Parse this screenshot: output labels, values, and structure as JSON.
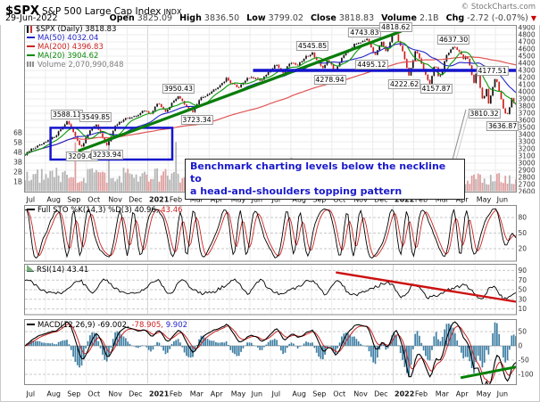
{
  "header": {
    "symbol": "$SPX",
    "name": "S&P 500 Large Cap Index",
    "exchange": "INDX",
    "credit": "© StockCharts.com",
    "date": "29-Jun-2022",
    "quote": {
      "open_label": "Open",
      "open": "3825.09",
      "high_label": "High",
      "high": "3836.50",
      "low_label": "Low",
      "low": "3799.02",
      "close_label": "Close",
      "close": "3818.83",
      "volume_label": "Volume",
      "volume": "2.1B",
      "chg_label": "Chg",
      "chg": "-2.72 (-0.07%)",
      "chg_arrow": "▼"
    }
  },
  "months": [
    "Jul",
    "Aug",
    "Sep",
    "Oct",
    "Nov",
    "Dec",
    "2021",
    "Feb",
    "Mar",
    "Apr",
    "May",
    "Jun",
    "Jul",
    "Aug",
    "Sep",
    "Oct",
    "Nov",
    "Dec",
    "2022",
    "Feb",
    "Mar",
    "Apr",
    "May",
    "Jun"
  ],
  "colors": {
    "up": "#111111",
    "down": "#cc2020",
    "ma20": "#0a9a0a",
    "ma50": "#2424c9",
    "ma200": "#e05555",
    "volume_up": "#b5b5b5",
    "volume_down": "#dfa0a0",
    "neckline": "#1515cc",
    "trendline": "#0a7d0a",
    "box": "#1515cc",
    "annotation_text": "#1a1acc",
    "sto_k": "#000000",
    "sto_d": "#cc2222",
    "rsi_line": "#000000",
    "rsi_trend": "#cc1111",
    "hist": "#3e7ea3",
    "macd_line": "#000000",
    "signal": "#cc2222",
    "macd_trend": "#008000"
  },
  "chart_data": [
    {
      "type": "candlestick",
      "title": "$SPX (Daily) 3818.83",
      "legend": {
        "symbol": "$SPX (Daily) 3818.83",
        "ma50": "MA(50) 4032.04",
        "ma200": "MA(200) 4396.83",
        "ma20": "MA(20) 3904.62",
        "volume": "Volume 2,070,990,848"
      },
      "y_ticks_right": [
        4900,
        4800,
        4700,
        4600,
        4500,
        4400,
        4300,
        4200,
        4100,
        4000,
        3900,
        3800,
        3700,
        3600,
        3500,
        3400,
        3300,
        3200,
        3100,
        3000,
        2900,
        2800,
        2700,
        2600
      ],
      "volume_ticks": [
        "1B",
        "2B",
        "3B",
        "4B",
        "5B",
        "6B"
      ],
      "price_anchors": [
        [
          0,
          3115
        ],
        [
          0.35,
          3205
        ],
        [
          0.9,
          3271
        ],
        [
          1.5,
          3387
        ],
        [
          2.05,
          3588.1
        ],
        [
          2.4,
          3424
        ],
        [
          2.75,
          3209.5
        ],
        [
          3.1,
          3420
        ],
        [
          3.45,
          3550
        ],
        [
          3.7,
          3400
        ],
        [
          3.98,
          3233.9
        ],
        [
          4.4,
          3512
        ],
        [
          4.85,
          3626
        ],
        [
          5.3,
          3640
        ],
        [
          5.8,
          3735
        ],
        [
          6.2,
          3700
        ],
        [
          6.5,
          3855
        ],
        [
          6.85,
          3714
        ],
        [
          7.5,
          3950.4
        ],
        [
          7.85,
          3790
        ],
        [
          8.2,
          3723.3
        ],
        [
          8.6,
          3915
        ],
        [
          9.2,
          4020
        ],
        [
          9.85,
          4181
        ],
        [
          10.4,
          4057
        ],
        [
          10.9,
          4202
        ],
        [
          11.6,
          4166
        ],
        [
          11.95,
          4286
        ],
        [
          12.3,
          4384
        ],
        [
          12.62,
          4258
        ],
        [
          12.95,
          4420
        ],
        [
          13.35,
          4373
        ],
        [
          13.8,
          4510
        ],
        [
          14.05,
          4545.9
        ],
        [
          14.55,
          4306
        ],
        [
          14.8,
          4460
        ],
        [
          15.15,
          4278.9
        ],
        [
          15.55,
          4520
        ],
        [
          15.9,
          4610
        ],
        [
          16.3,
          4700
        ],
        [
          16.7,
          4743.8
        ],
        [
          17.1,
          4495.1
        ],
        [
          17.45,
          4712
        ],
        [
          17.68,
          4531
        ],
        [
          17.95,
          4807
        ],
        [
          18.12,
          4818.6
        ],
        [
          18.45,
          4580
        ],
        [
          18.78,
          4222.6
        ],
        [
          19.1,
          4595
        ],
        [
          19.45,
          4330
        ],
        [
          19.8,
          4114.7
        ],
        [
          20.05,
          4416
        ],
        [
          20.25,
          4157.9
        ],
        [
          20.6,
          4520
        ],
        [
          20.95,
          4637.3
        ],
        [
          21.2,
          4583
        ],
        [
          21.45,
          4450
        ],
        [
          21.6,
          4513
        ],
        [
          21.95,
          4124
        ],
        [
          22.1,
          4300
        ],
        [
          22.4,
          3858
        ],
        [
          22.55,
          4090
        ],
        [
          22.65,
          3810.3
        ],
        [
          22.95,
          4158
        ],
        [
          23.05,
          4177.5
        ],
        [
          23.4,
          3750
        ],
        [
          23.55,
          3636.9
        ],
        [
          23.8,
          3911
        ],
        [
          23.95,
          3818.8
        ]
      ],
      "labels": [
        {
          "text": "3588.11",
          "m": 2.05,
          "v": 3588.11,
          "side": "above"
        },
        {
          "text": "3549.85",
          "m": 3.45,
          "v": 3550,
          "side": "above"
        },
        {
          "text": "3209.45",
          "m": 2.8,
          "v": 3209.45,
          "side": "below"
        },
        {
          "text": "3233.94",
          "m": 4.0,
          "v": 3233.94,
          "side": "below"
        },
        {
          "text": "3950.43",
          "m": 7.5,
          "v": 3950.43,
          "side": "above"
        },
        {
          "text": "3723.34",
          "m": 8.4,
          "v": 3723.34,
          "side": "below"
        },
        {
          "text": "4545.85",
          "m": 14.05,
          "v": 4545.85,
          "side": "above"
        },
        {
          "text": "4278.94",
          "m": 14.9,
          "v": 4278.94,
          "side": "below"
        },
        {
          "text": "4743.83",
          "m": 16.6,
          "v": 4743.83,
          "side": "above"
        },
        {
          "text": "4495.12",
          "m": 16.95,
          "v": 4495.12,
          "side": "below"
        },
        {
          "text": "4818.62",
          "m": 18.12,
          "v": 4818.62,
          "side": "above"
        },
        {
          "text": "4222.62",
          "m": 18.55,
          "v": 4222.62,
          "side": "below"
        },
        {
          "text": "4157.87",
          "m": 20.1,
          "v": 4157.87,
          "side": "below"
        },
        {
          "text": "4637.30",
          "m": 20.95,
          "v": 4637.3,
          "side": "above"
        },
        {
          "text": "3810.32",
          "m": 22.45,
          "v": 3810.32,
          "side": "below"
        },
        {
          "text": "4177.51",
          "m": 22.85,
          "v": 4300,
          "side": "on"
        },
        {
          "text": "3636.87",
          "m": 23.35,
          "v": 3636.87,
          "side": "below"
        }
      ],
      "neckline": {
        "price": 4300,
        "m1": 11.15,
        "m2": 24,
        "label": "4177.51"
      },
      "trendline": {
        "m1": 2.6,
        "p1": 3170,
        "m2": 18.4,
        "p2": 4850
      },
      "box": {
        "m1": 1.25,
        "p1": 3495,
        "m2": 7.2,
        "p2": 3050
      },
      "callout": {
        "line1": "Benchmark charting levels below the neckline to",
        "line2": "a head-and-shoulders topping pattern"
      }
    },
    {
      "type": "line",
      "name": "Full Stochastic",
      "legend_black": "Full STO %K(14,3) %D(3) 40.96,",
      "legend_red": " 43.46",
      "series_names": [
        "%K",
        "%D"
      ],
      "last_values": [
        40.96,
        43.46
      ],
      "y_ticks": [
        80,
        50,
        20
      ],
      "y_range": [
        0,
        100
      ]
    },
    {
      "type": "line",
      "name": "RSI",
      "legend": "RSI(14) 43.41",
      "last_value": 43.41,
      "y_ticks": [
        90,
        70,
        50,
        30,
        10
      ],
      "y_range": [
        0,
        100
      ],
      "trendline": {
        "m1": 15.2,
        "v1": 86,
        "m2": 24,
        "v2": 25
      }
    },
    {
      "type": "line",
      "name": "MACD",
      "legend_black": "MACD(12,26,9) -69.002,",
      "legend_red": " -78.905,",
      "legend_blue": " 9.902",
      "last_values": {
        "macd": -69.002,
        "signal": -78.905,
        "hist": 9.902
      },
      "y_ticks": [
        50,
        0,
        -50,
        -100
      ],
      "trendline": {
        "m1": 21.3,
        "v1": -112,
        "m2": 24,
        "v2": -74
      }
    }
  ]
}
